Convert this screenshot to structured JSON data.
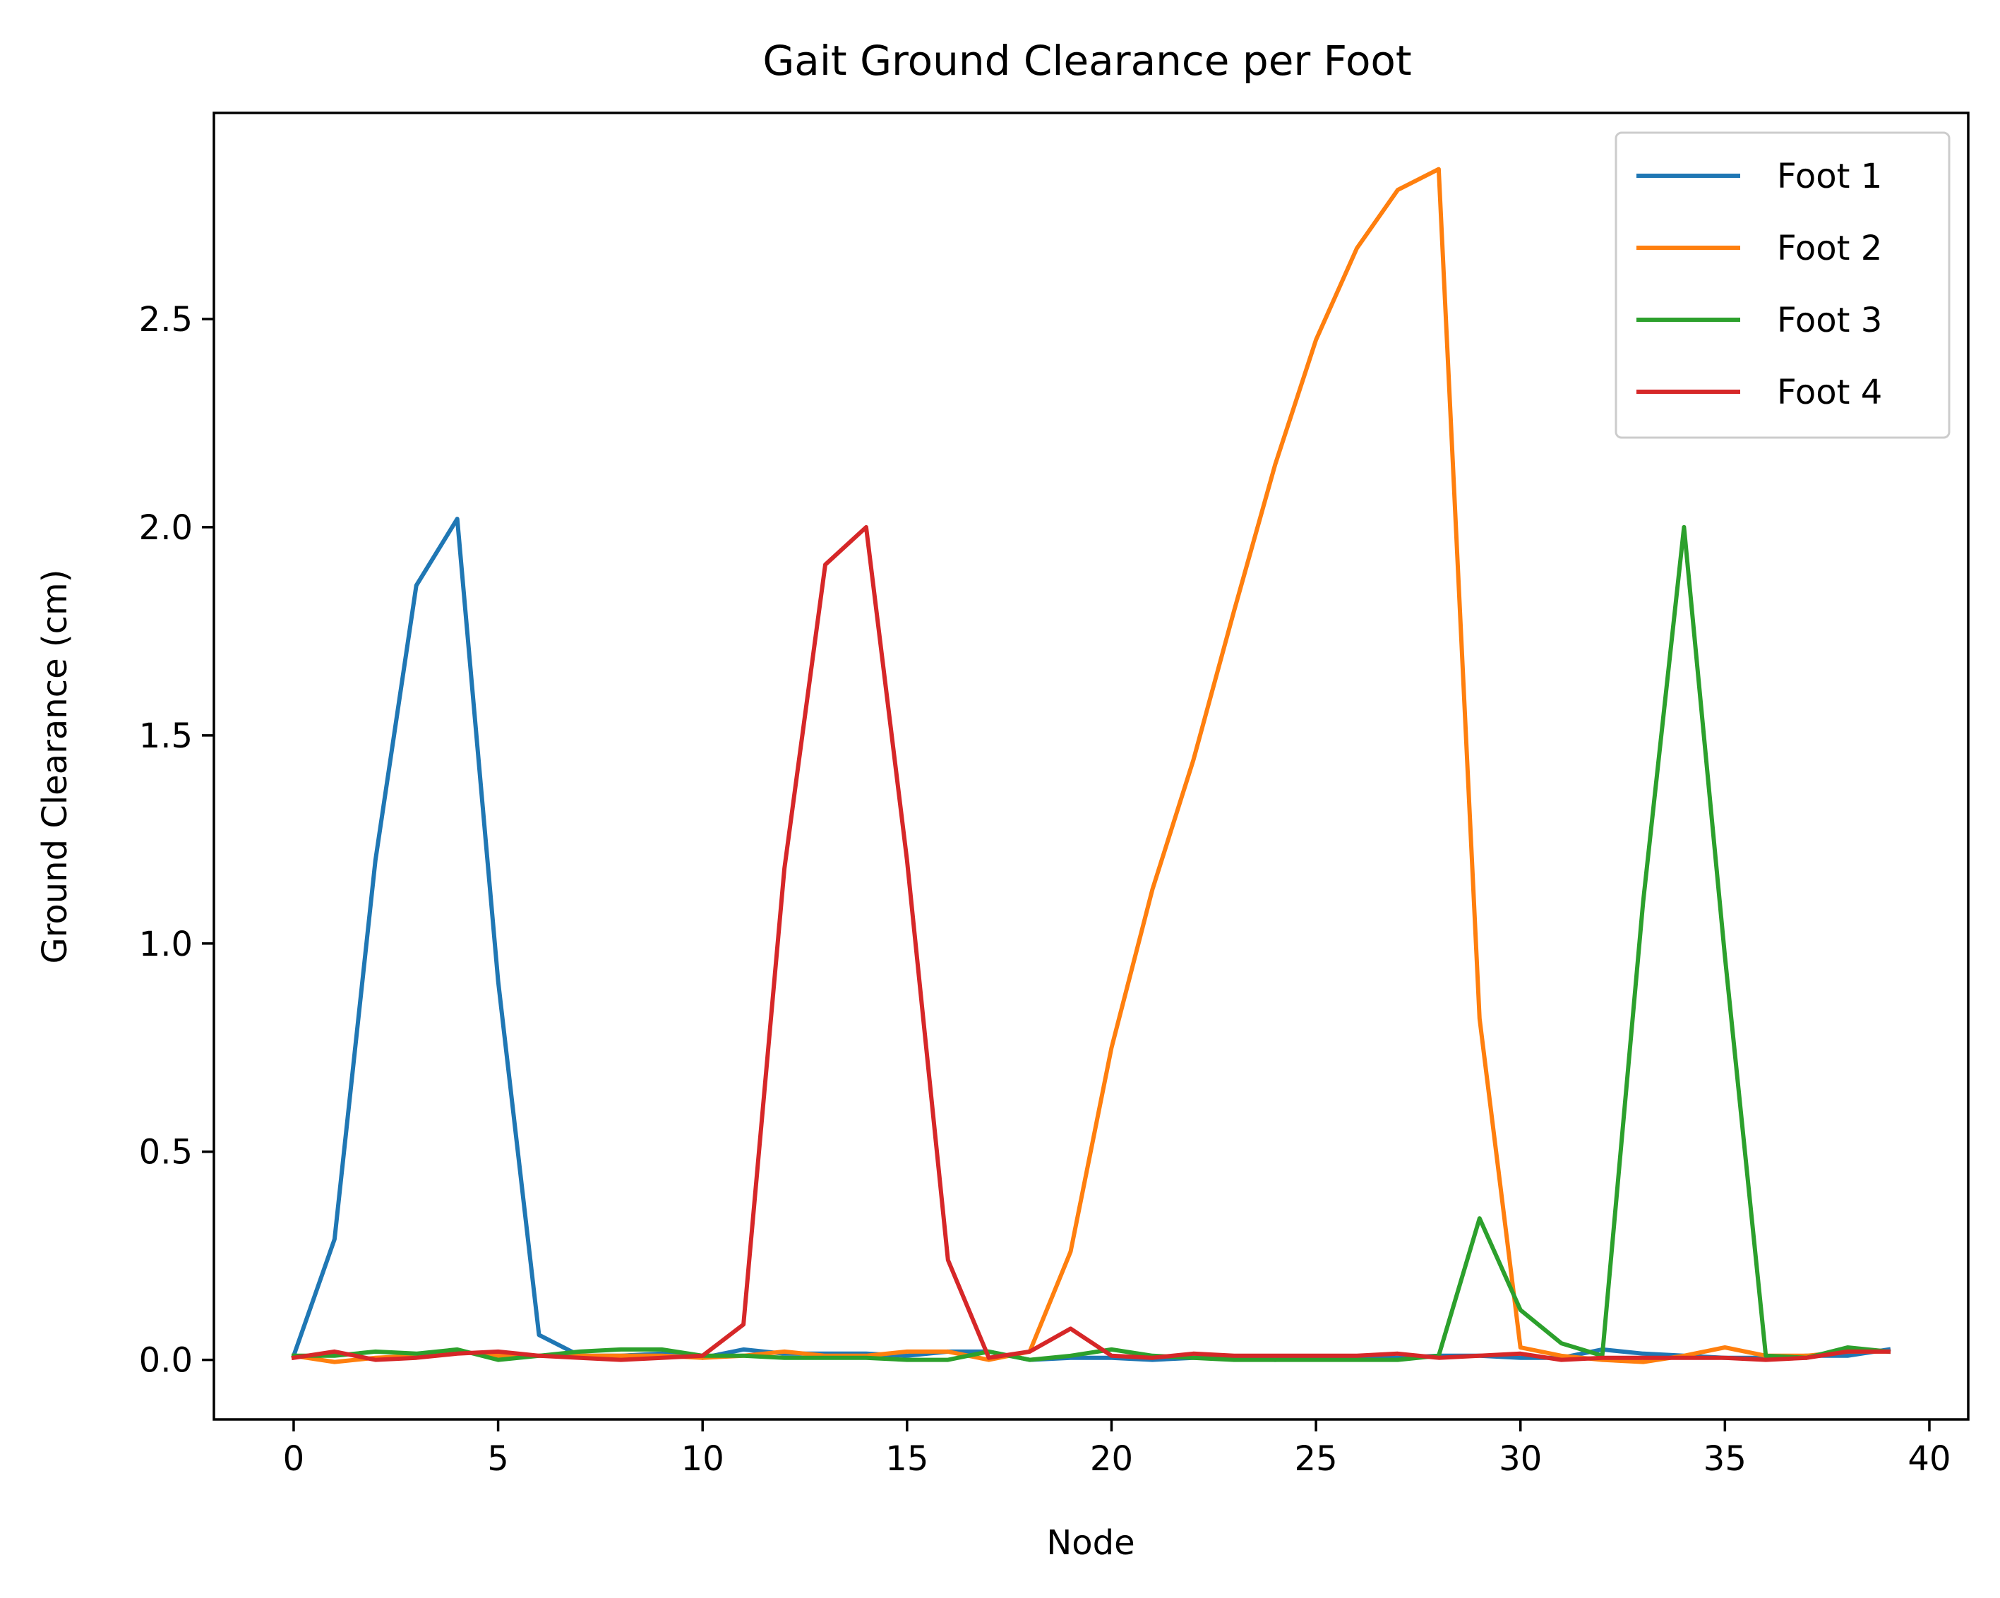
{
  "chart_data": {
    "type": "line",
    "title": "Gait Ground Clearance per Foot",
    "xlabel": "Node",
    "ylabel": "Ground Clearance (cm)",
    "xlim": [
      -1.95,
      40.95
    ],
    "ylim": [
      -0.143,
      2.995
    ],
    "xticks": [
      0,
      5,
      10,
      15,
      20,
      25,
      30,
      35,
      40
    ],
    "xtick_labels": [
      "0",
      "5",
      "10",
      "15",
      "20",
      "25",
      "30",
      "35",
      "40"
    ],
    "yticks": [
      0.0,
      0.5,
      1.0,
      1.5,
      2.0,
      2.5
    ],
    "ytick_labels": [
      "0.0",
      "0.5",
      "1.0",
      "1.5",
      "2.0",
      "2.5"
    ],
    "grid": false,
    "legend_position": "top-right",
    "x": [
      0,
      1,
      2,
      3,
      4,
      5,
      6,
      7,
      8,
      9,
      10,
      11,
      12,
      13,
      14,
      15,
      16,
      17,
      18,
      19,
      20,
      21,
      22,
      23,
      24,
      25,
      26,
      27,
      28,
      29,
      30,
      31,
      32,
      33,
      34,
      35,
      36,
      37,
      38,
      39
    ],
    "series": [
      {
        "name": "Foot 1",
        "color": "#1f77b4",
        "values": [
          0.01,
          0.29,
          1.2,
          1.86,
          2.02,
          0.91,
          0.06,
          0.01,
          0.01,
          0.015,
          0.005,
          0.025,
          0.015,
          0.015,
          0.015,
          0.01,
          0.02,
          0.02,
          0.0,
          0.005,
          0.005,
          0.0,
          0.005,
          0.005,
          0.0,
          0.005,
          0.005,
          0.005,
          0.01,
          0.01,
          0.005,
          0.005,
          0.025,
          0.015,
          0.01,
          0.005,
          0.005,
          0.01,
          0.01,
          0.025
        ]
      },
      {
        "name": "Foot 2",
        "color": "#ff7f0e",
        "values": [
          0.01,
          -0.005,
          0.005,
          0.01,
          0.02,
          0.01,
          0.01,
          0.01,
          0.01,
          0.01,
          0.005,
          0.01,
          0.02,
          0.01,
          0.01,
          0.02,
          0.02,
          0.0,
          0.02,
          0.26,
          0.75,
          1.13,
          1.44,
          1.8,
          2.15,
          2.45,
          2.67,
          2.81,
          2.86,
          0.82,
          0.03,
          0.01,
          0.0,
          -0.005,
          0.01,
          0.03,
          0.01,
          0.01,
          0.02,
          0.02
        ]
      },
      {
        "name": "Foot 3",
        "color": "#2ca02c",
        "values": [
          0.01,
          0.01,
          0.02,
          0.015,
          0.025,
          0.0,
          0.01,
          0.02,
          0.025,
          0.025,
          0.01,
          0.01,
          0.005,
          0.005,
          0.005,
          0.0,
          0.0,
          0.02,
          0.0,
          0.01,
          0.025,
          0.01,
          0.005,
          0.0,
          0.0,
          0.0,
          0.0,
          0.0,
          0.01,
          0.34,
          0.12,
          0.04,
          0.01,
          1.1,
          2.0,
          0.97,
          0.01,
          0.005,
          0.03,
          0.02
        ]
      },
      {
        "name": "Foot 4",
        "color": "#d62728",
        "values": [
          0.005,
          0.02,
          0.0,
          0.005,
          0.015,
          0.02,
          0.01,
          0.005,
          0.0,
          0.005,
          0.01,
          0.085,
          1.18,
          1.91,
          2.0,
          1.2,
          0.24,
          0.005,
          0.02,
          0.075,
          0.01,
          0.005,
          0.015,
          0.01,
          0.01,
          0.01,
          0.01,
          0.015,
          0.005,
          0.01,
          0.015,
          0.0,
          0.005,
          0.005,
          0.005,
          0.005,
          0.0,
          0.005,
          0.02,
          0.02
        ]
      }
    ]
  }
}
